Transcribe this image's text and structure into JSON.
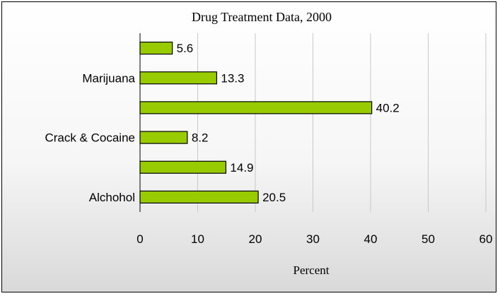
{
  "chart_data": {
    "type": "bar",
    "orientation": "horizontal",
    "title": "Drug Treatment Data, 2000",
    "xlabel": "Percent",
    "ylabel": "",
    "categories_bottom_to_top": [
      "Alchohol",
      "",
      "Crack & Cocaine",
      "",
      "Marijuana",
      ""
    ],
    "values_bottom_to_top": [
      20.5,
      14.9,
      8.2,
      40.2,
      13.3,
      5.6
    ],
    "data_labels_bottom_to_top": [
      "20.5",
      "14.9",
      "8.2",
      "40.2",
      "13.3",
      "5.6"
    ],
    "xlim": [
      0,
      60
    ],
    "x_ticks": [
      0,
      10,
      20,
      30,
      40,
      50,
      60
    ],
    "x_tick_labels": [
      "0",
      "10",
      "20",
      "30",
      "40",
      "50",
      "60"
    ],
    "grid": "vertical",
    "legend": "none",
    "bar_color": "#99cc00",
    "bar_edge_color": "#000000"
  }
}
